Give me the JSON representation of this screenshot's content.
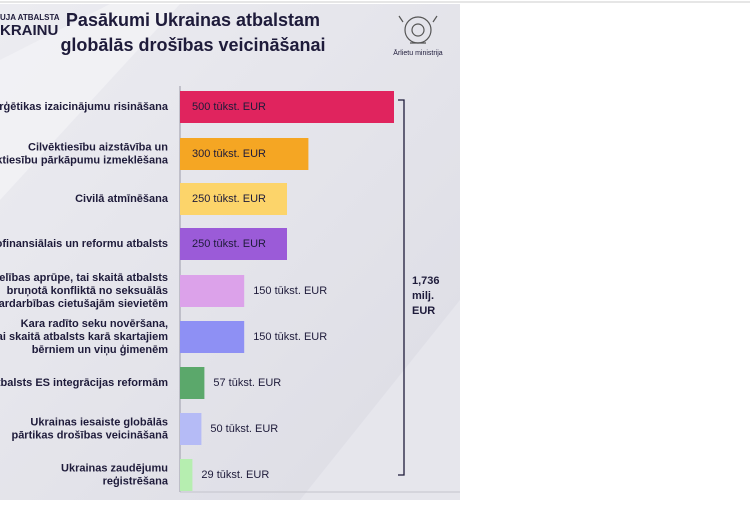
{
  "chart_data": {
    "type": "bar",
    "orientation": "horizontal",
    "title": [
      "Pasākumi Ukrainas atbalstam",
      "globālās drošības veicināšanai"
    ],
    "logo_left": [
      "UJA ATBALSTA",
      "KRAINU"
    ],
    "logo_right": "Ārlietu ministrija",
    "categories": [
      [
        "nerģētikas izaicinājumu risināšana"
      ],
      [
        "Cilvēktiesību aizstāvība un",
        "ktiesību pārkāpumu izmeklēšana"
      ],
      [
        "Civilā atmīnēšana"
      ],
      [
        "ofinansiālais un reformu atbalsts"
      ],
      [
        "selības aprūpe, tai skaitā atbalsts",
        "bruņotā konfliktā no seksuālās",
        "ardarbības cietušajām sievietēm"
      ],
      [
        "Kara radīto seku novēršana,",
        "ai skaitā atbalsts karā skartajiem",
        "bērniem un viņu ģimenēm"
      ],
      [
        "tbalsts ES integrācijas reformām"
      ],
      [
        "Ukrainas iesaiste globālās",
        "pārtikas drošības veicināšanā"
      ],
      [
        "Ukrainas zaudējumu",
        "reģistrēšana"
      ]
    ],
    "values": [
      500,
      300,
      250,
      250,
      150,
      150,
      57,
      50,
      29
    ],
    "value_labels": [
      "500 tūkst. EUR",
      "300 tūkst. EUR",
      "250 tūkst. EUR",
      "250 tūkst. EUR",
      "150 tūkst. EUR",
      "150 tūkst. EUR",
      "57 tūkst. EUR",
      "50 tūkst. EUR",
      "29 tūkst. EUR"
    ],
    "colors": [
      "#e0245e",
      "#f5a623",
      "#fcd46a",
      "#9b5bd8",
      "#dca2ea",
      "#8e90f4",
      "#5ba86b",
      "#b5bbf6",
      "#b6eeb0"
    ],
    "xlim": [
      0,
      500
    ],
    "total_label": [
      "1,736",
      "milj.",
      "EUR"
    ]
  }
}
